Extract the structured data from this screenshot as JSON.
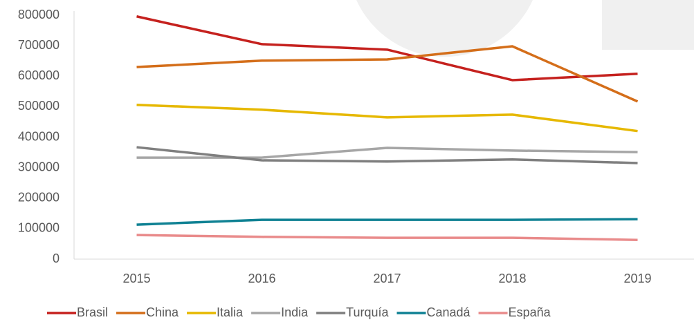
{
  "chart_data": {
    "type": "line",
    "categories": [
      "2015",
      "2016",
      "2017",
      "2018",
      "2019"
    ],
    "series": [
      {
        "name": "Brasil",
        "color": "#c5211e",
        "values": [
          796000,
          705000,
          687000,
          587000,
          608000
        ]
      },
      {
        "name": "China",
        "color": "#d46e1a",
        "values": [
          630000,
          651000,
          655000,
          698000,
          517000
        ]
      },
      {
        "name": "Italia",
        "color": "#e6b800",
        "values": [
          506000,
          490000,
          465000,
          474000,
          420000
        ]
      },
      {
        "name": "India",
        "color": "#a6a6a6",
        "values": [
          333000,
          333000,
          365000,
          356000,
          351000
        ]
      },
      {
        "name": "Turquía",
        "color": "#7f7f7f",
        "values": [
          367000,
          324000,
          320000,
          327000,
          315000
        ]
      },
      {
        "name": "Canadá",
        "color": "#0f8193",
        "values": [
          113000,
          129000,
          129000,
          129000,
          131000
        ]
      },
      {
        "name": "España",
        "color": "#e98b8b",
        "values": [
          79000,
          73000,
          70000,
          70000,
          63000
        ]
      }
    ],
    "ylim": [
      0,
      800000
    ],
    "yticks": [
      0,
      100000,
      200000,
      300000,
      400000,
      500000,
      600000,
      700000,
      800000
    ],
    "grid": false,
    "legend": "bottom"
  }
}
